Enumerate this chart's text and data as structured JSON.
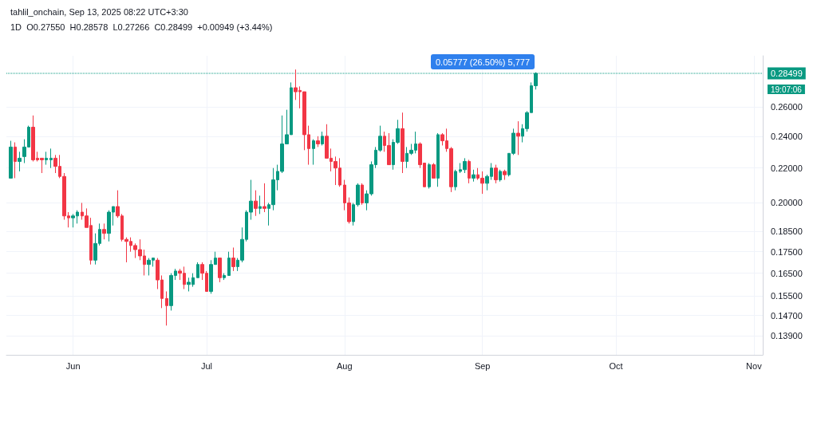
{
  "chart_data": {
    "type": "candlestick",
    "title": "tahlil_onchain, Sep 13, 2025 08:22 UTC+3:30",
    "subtitle": "1D  O0.27550  H0.28578  L0.27266  C0.28499  +0.00949 (+3.44%)",
    "x": [
      "2025-05-18",
      "2025-05-19",
      "2025-05-20",
      "2025-05-21",
      "2025-05-22",
      "2025-05-23",
      "2025-05-24",
      "2025-05-25",
      "2025-05-26",
      "2025-05-27",
      "2025-05-28",
      "2025-05-29",
      "2025-05-30",
      "2025-05-31",
      "2025-06-01",
      "2025-06-02",
      "2025-06-03",
      "2025-06-04",
      "2025-06-05",
      "2025-06-06",
      "2025-06-07",
      "2025-06-08",
      "2025-06-09",
      "2025-06-10",
      "2025-06-11",
      "2025-06-12",
      "2025-06-13",
      "2025-06-14",
      "2025-06-15",
      "2025-06-16",
      "2025-06-17",
      "2025-06-18",
      "2025-06-19",
      "2025-06-20",
      "2025-06-21",
      "2025-06-22",
      "2025-06-23",
      "2025-06-24",
      "2025-06-25",
      "2025-06-26",
      "2025-06-27",
      "2025-06-28",
      "2025-06-29",
      "2025-06-30",
      "2025-07-01",
      "2025-07-02",
      "2025-07-03",
      "2025-07-04",
      "2025-07-05",
      "2025-07-06",
      "2025-07-07",
      "2025-07-08",
      "2025-07-09",
      "2025-07-10",
      "2025-07-11",
      "2025-07-12",
      "2025-07-13",
      "2025-07-14",
      "2025-07-15",
      "2025-07-16",
      "2025-07-17",
      "2025-07-18",
      "2025-07-19",
      "2025-07-20",
      "2025-07-21",
      "2025-07-22",
      "2025-07-23",
      "2025-07-24",
      "2025-07-25",
      "2025-07-26",
      "2025-07-27",
      "2025-07-28",
      "2025-07-29",
      "2025-07-30",
      "2025-07-31",
      "2025-08-01",
      "2025-08-02",
      "2025-08-03",
      "2025-08-04",
      "2025-08-05",
      "2025-08-06",
      "2025-08-07",
      "2025-08-08",
      "2025-08-09",
      "2025-08-10",
      "2025-08-11",
      "2025-08-12",
      "2025-08-13",
      "2025-08-14",
      "2025-08-15",
      "2025-08-16",
      "2025-08-17",
      "2025-08-18",
      "2025-08-19",
      "2025-08-20",
      "2025-08-21",
      "2025-08-22",
      "2025-08-23",
      "2025-08-24",
      "2025-08-25",
      "2025-08-26",
      "2025-08-27",
      "2025-08-28",
      "2025-08-29",
      "2025-08-30",
      "2025-08-31",
      "2025-09-01",
      "2025-09-02",
      "2025-09-03",
      "2025-09-04",
      "2025-09-05",
      "2025-09-06",
      "2025-09-07",
      "2025-09-08",
      "2025-09-09",
      "2025-09-10",
      "2025-09-11",
      "2025-09-12",
      "2025-09-13"
    ],
    "ohlc": [
      [
        0.214,
        0.237,
        0.214,
        0.233
      ],
      [
        0.233,
        0.236,
        0.214,
        0.224
      ],
      [
        0.224,
        0.23,
        0.218,
        0.226
      ],
      [
        0.227,
        0.238,
        0.223,
        0.233
      ],
      [
        0.233,
        0.247,
        0.233,
        0.246
      ],
      [
        0.246,
        0.254,
        0.224,
        0.225
      ],
      [
        0.226,
        0.23,
        0.224,
        0.225
      ],
      [
        0.226,
        0.226,
        0.217,
        0.225
      ],
      [
        0.225,
        0.23,
        0.222,
        0.226
      ],
      [
        0.225,
        0.232,
        0.22,
        0.226
      ],
      [
        0.226,
        0.228,
        0.217,
        0.221
      ],
      [
        0.221,
        0.228,
        0.214,
        0.215
      ],
      [
        0.215,
        0.217,
        0.191,
        0.193
      ],
      [
        0.193,
        0.195,
        0.187,
        0.192
      ],
      [
        0.192,
        0.194,
        0.187,
        0.193
      ],
      [
        0.193,
        0.196,
        0.189,
        0.195
      ],
      [
        0.195,
        0.2,
        0.191,
        0.193
      ],
      [
        0.193,
        0.197,
        0.187,
        0.187
      ],
      [
        0.188,
        0.192,
        0.169,
        0.171
      ],
      [
        0.171,
        0.184,
        0.169,
        0.179
      ],
      [
        0.179,
        0.189,
        0.178,
        0.186
      ],
      [
        0.186,
        0.189,
        0.181,
        0.184
      ],
      [
        0.184,
        0.196,
        0.18,
        0.195
      ],
      [
        0.195,
        0.198,
        0.188,
        0.198
      ],
      [
        0.198,
        0.207,
        0.192,
        0.193
      ],
      [
        0.193,
        0.194,
        0.18,
        0.181
      ],
      [
        0.181,
        0.182,
        0.17,
        0.18
      ],
      [
        0.18,
        0.182,
        0.175,
        0.178
      ],
      [
        0.178,
        0.179,
        0.172,
        0.176
      ],
      [
        0.176,
        0.181,
        0.171,
        0.173
      ],
      [
        0.173,
        0.176,
        0.164,
        0.169
      ],
      [
        0.169,
        0.172,
        0.164,
        0.171
      ],
      [
        0.171,
        0.172,
        0.168,
        0.172
      ],
      [
        0.171,
        0.172,
        0.158,
        0.162
      ],
      [
        0.162,
        0.164,
        0.15,
        0.154
      ],
      [
        0.154,
        0.157,
        0.143,
        0.151
      ],
      [
        0.151,
        0.165,
        0.149,
        0.164
      ],
      [
        0.164,
        0.167,
        0.162,
        0.166
      ],
      [
        0.166,
        0.167,
        0.162,
        0.165
      ],
      [
        0.165,
        0.168,
        0.158,
        0.16
      ],
      [
        0.16,
        0.163,
        0.157,
        0.161
      ],
      [
        0.16,
        0.165,
        0.159,
        0.163
      ],
      [
        0.163,
        0.17,
        0.163,
        0.169
      ],
      [
        0.169,
        0.17,
        0.162,
        0.165
      ],
      [
        0.165,
        0.166,
        0.157,
        0.157
      ],
      [
        0.157,
        0.171,
        0.156,
        0.169
      ],
      [
        0.169,
        0.175,
        0.169,
        0.172
      ],
      [
        0.172,
        0.172,
        0.161,
        0.163
      ],
      [
        0.163,
        0.165,
        0.162,
        0.164
      ],
      [
        0.164,
        0.175,
        0.164,
        0.172
      ],
      [
        0.172,
        0.177,
        0.166,
        0.168
      ],
      [
        0.168,
        0.172,
        0.166,
        0.171
      ],
      [
        0.171,
        0.187,
        0.17,
        0.181
      ],
      [
        0.181,
        0.196,
        0.18,
        0.195
      ],
      [
        0.195,
        0.213,
        0.191,
        0.201
      ],
      [
        0.201,
        0.207,
        0.193,
        0.197
      ],
      [
        0.197,
        0.204,
        0.194,
        0.198
      ],
      [
        0.198,
        0.211,
        0.195,
        0.197
      ],
      [
        0.197,
        0.2,
        0.188,
        0.199
      ],
      [
        0.199,
        0.22,
        0.196,
        0.213
      ],
      [
        0.213,
        0.222,
        0.207,
        0.218
      ],
      [
        0.218,
        0.254,
        0.217,
        0.235
      ],
      [
        0.235,
        0.258,
        0.235,
        0.241
      ],
      [
        0.241,
        0.278,
        0.241,
        0.274
      ],
      [
        0.274,
        0.288,
        0.265,
        0.271
      ],
      [
        0.272,
        0.275,
        0.259,
        0.271
      ],
      [
        0.271,
        0.271,
        0.231,
        0.241
      ],
      [
        0.241,
        0.247,
        0.222,
        0.232
      ],
      [
        0.232,
        0.238,
        0.222,
        0.237
      ],
      [
        0.237,
        0.24,
        0.233,
        0.235
      ],
      [
        0.235,
        0.243,
        0.234,
        0.24
      ],
      [
        0.24,
        0.248,
        0.226,
        0.226
      ],
      [
        0.226,
        0.232,
        0.218,
        0.224
      ],
      [
        0.224,
        0.227,
        0.21,
        0.22
      ],
      [
        0.22,
        0.226,
        0.209,
        0.21
      ],
      [
        0.21,
        0.213,
        0.196,
        0.2
      ],
      [
        0.2,
        0.203,
        0.189,
        0.19
      ],
      [
        0.19,
        0.2,
        0.188,
        0.199
      ],
      [
        0.199,
        0.211,
        0.198,
        0.21
      ],
      [
        0.21,
        0.211,
        0.199,
        0.2
      ],
      [
        0.2,
        0.207,
        0.196,
        0.205
      ],
      [
        0.205,
        0.224,
        0.204,
        0.222
      ],
      [
        0.222,
        0.233,
        0.22,
        0.231
      ],
      [
        0.231,
        0.247,
        0.23,
        0.24
      ],
      [
        0.24,
        0.243,
        0.23,
        0.234
      ],
      [
        0.234,
        0.242,
        0.222,
        0.222
      ],
      [
        0.222,
        0.238,
        0.219,
        0.236
      ],
      [
        0.236,
        0.251,
        0.235,
        0.245
      ],
      [
        0.245,
        0.256,
        0.217,
        0.224
      ],
      [
        0.224,
        0.233,
        0.22,
        0.229
      ],
      [
        0.229,
        0.235,
        0.228,
        0.231
      ],
      [
        0.231,
        0.243,
        0.229,
        0.235
      ],
      [
        0.235,
        0.236,
        0.22,
        0.222
      ],
      [
        0.223,
        0.223,
        0.209,
        0.209
      ],
      [
        0.209,
        0.223,
        0.208,
        0.222
      ],
      [
        0.222,
        0.223,
        0.214,
        0.214
      ],
      [
        0.214,
        0.242,
        0.209,
        0.241
      ],
      [
        0.241,
        0.242,
        0.234,
        0.237
      ],
      [
        0.237,
        0.245,
        0.23,
        0.232
      ],
      [
        0.232,
        0.233,
        0.206,
        0.209
      ],
      [
        0.209,
        0.219,
        0.207,
        0.218
      ],
      [
        0.218,
        0.223,
        0.217,
        0.219
      ],
      [
        0.219,
        0.226,
        0.217,
        0.224
      ],
      [
        0.224,
        0.225,
        0.211,
        0.214
      ],
      [
        0.214,
        0.219,
        0.212,
        0.216
      ],
      [
        0.216,
        0.22,
        0.213,
        0.214
      ],
      [
        0.214,
        0.218,
        0.205,
        0.211
      ],
      [
        0.211,
        0.216,
        0.207,
        0.215
      ],
      [
        0.215,
        0.223,
        0.213,
        0.22
      ],
      [
        0.22,
        0.222,
        0.211,
        0.213
      ],
      [
        0.213,
        0.219,
        0.212,
        0.218
      ],
      [
        0.218,
        0.219,
        0.213,
        0.216
      ],
      [
        0.216,
        0.229,
        0.215,
        0.229
      ],
      [
        0.229,
        0.245,
        0.228,
        0.242
      ],
      [
        0.242,
        0.25,
        0.228,
        0.24
      ],
      [
        0.24,
        0.248,
        0.236,
        0.245
      ],
      [
        0.245,
        0.257,
        0.243,
        0.256
      ],
      [
        0.256,
        0.278,
        0.256,
        0.2755
      ],
      [
        0.2755,
        0.28578,
        0.27266,
        0.28499
      ]
    ],
    "colors": [
      "#089981",
      "#f23645",
      "#089981",
      "#089981",
      "#089981",
      "#f23645",
      "#f23645",
      "#f23645",
      "#089981",
      "#089981",
      "#f23645",
      "#f23645",
      "#f23645",
      "#f23645",
      "#089981",
      "#089981",
      "#f23645",
      "#f23645",
      "#f23645",
      "#089981",
      "#089981",
      "#f23645",
      "#089981",
      "#089981",
      "#f23645",
      "#f23645",
      "#f23645",
      "#f23645",
      "#f23645",
      "#f23645",
      "#f23645",
      "#089981",
      "#089981",
      "#f23645",
      "#f23645",
      "#f23645",
      "#089981",
      "#089981",
      "#f23645",
      "#f23645",
      "#089981",
      "#089981",
      "#089981",
      "#f23645",
      "#f23645",
      "#089981",
      "#089981",
      "#f23645",
      "#089981",
      "#089981",
      "#f23645",
      "#089981",
      "#089981",
      "#089981",
      "#089981",
      "#f23645",
      "#089981",
      "#f23645",
      "#089981",
      "#089981",
      "#089981",
      "#089981",
      "#089981",
      "#089981",
      "#f23645",
      "#f23645",
      "#f23645",
      "#f23645",
      "#089981",
      "#f23645",
      "#089981",
      "#f23645",
      "#f23645",
      "#f23645",
      "#f23645",
      "#f23645",
      "#f23645",
      "#089981",
      "#089981",
      "#f23645",
      "#089981",
      "#089981",
      "#089981",
      "#089981",
      "#f23645",
      "#f23645",
      "#089981",
      "#089981",
      "#f23645",
      "#089981",
      "#089981",
      "#089981",
      "#f23645",
      "#f23645",
      "#089981",
      "#f23645",
      "#089981",
      "#f23645",
      "#f23645",
      "#f23645",
      "#089981",
      "#089981",
      "#089981",
      "#f23645",
      "#089981",
      "#f23645",
      "#f23645",
      "#089981",
      "#089981",
      "#f23645",
      "#089981",
      "#f23645",
      "#089981",
      "#089981",
      "#f23645",
      "#089981",
      "#089981",
      "#089981",
      "#089981"
    ],
    "xlim": [
      "2025-05-17",
      "2025-11-03"
    ],
    "xticks": [
      {
        "value": "2025-06-01",
        "label": "Jun"
      },
      {
        "value": "2025-07-01",
        "label": "Jul"
      },
      {
        "value": "2025-08-01",
        "label": "Aug"
      },
      {
        "value": "2025-09-01",
        "label": "Sep"
      },
      {
        "value": "2025-10-01",
        "label": "Oct"
      },
      {
        "value": "2025-11-01",
        "label": "Nov"
      }
    ],
    "ylim": [
      0.132,
      0.299
    ],
    "yticks": [
      {
        "value": 0.139,
        "label": "0.13900"
      },
      {
        "value": 0.147,
        "label": "0.14700"
      },
      {
        "value": 0.155,
        "label": "0.15500"
      },
      {
        "value": 0.165,
        "label": "0.16500"
      },
      {
        "value": 0.175,
        "label": "0.17500"
      },
      {
        "value": 0.185,
        "label": "0.18500"
      },
      {
        "value": 0.2,
        "label": "0.20000"
      },
      {
        "value": 0.22,
        "label": "0.22000"
      },
      {
        "value": 0.24,
        "label": "0.24000"
      },
      {
        "value": 0.26,
        "label": "0.26000"
      }
    ],
    "log": true,
    "grid": true,
    "ref_lines": [
      {
        "axis": "y",
        "value": 0.28499,
        "label": "0.28499",
        "color": "#089981",
        "line_style": "dotted"
      }
    ],
    "annotations": [
      "0.05777 (26.50%) 5,777",
      "19:07:06"
    ]
  }
}
